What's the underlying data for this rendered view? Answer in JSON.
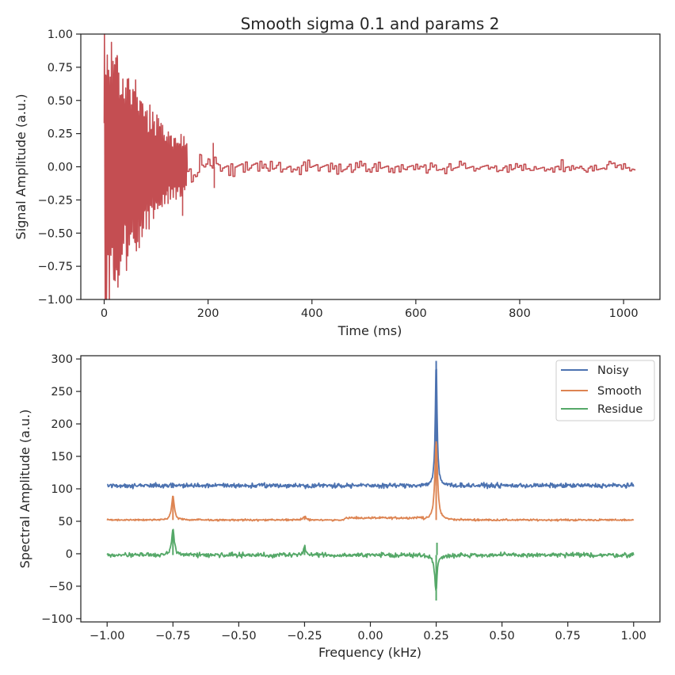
{
  "figure": {
    "title": "Smooth sigma 0.1 and params 2"
  },
  "chart_data": [
    {
      "type": "line",
      "id": "time",
      "title": "Smooth sigma 0.1 and params 2",
      "xlabel": "Time (ms)",
      "ylabel": "Signal Amplitude (a.u.)",
      "xlim": [
        -45,
        1070
      ],
      "ylim": [
        -1.0,
        1.0
      ],
      "xticks": [
        0,
        200,
        400,
        600,
        800,
        1000
      ],
      "xtick_labels": [
        "0",
        "200",
        "400",
        "600",
        "800",
        "1000"
      ],
      "yticks": [
        -1.0,
        -0.75,
        -0.5,
        -0.25,
        0.0,
        0.25,
        0.5,
        0.75,
        1.0
      ],
      "ytick_labels": [
        "−1.00",
        "−0.75",
        "−0.50",
        "−0.25",
        "0.00",
        "0.25",
        "0.50",
        "0.75",
        "1.00"
      ],
      "grid": false,
      "series": [
        {
          "color": "#c44e52",
          "description": "decaying oscillation, envelope ~1.0 at 0 ms, ~0.1 after 200 ms, ends near 1023 ms",
          "envelope_points": [
            [
              0,
              1.0
            ],
            [
              20,
              0.85
            ],
            [
              50,
              0.6
            ],
            [
              80,
              0.45
            ],
            [
              100,
              0.35
            ],
            [
              130,
              0.2
            ],
            [
              150,
              0.2
            ],
            [
              210,
              0.08
            ],
            [
              600,
              0.05
            ],
            [
              1023,
              0.04
            ]
          ],
          "x_end": 1023
        }
      ]
    },
    {
      "type": "line",
      "id": "freq",
      "xlabel": "Frequency (kHz)",
      "ylabel": "Spectral Amplitude (a.u.)",
      "xlim": [
        -1.1,
        1.1
      ],
      "ylim": [
        -105,
        305
      ],
      "xticks": [
        -1.0,
        -0.75,
        -0.5,
        -0.25,
        0.0,
        0.25,
        0.5,
        0.75,
        1.0
      ],
      "xtick_labels": [
        "−1.00",
        "−0.75",
        "−0.50",
        "−0.25",
        "0.00",
        "0.25",
        "0.50",
        "0.75",
        "1.00"
      ],
      "yticks": [
        -100,
        -50,
        0,
        50,
        100,
        150,
        200,
        250,
        300
      ],
      "ytick_labels": [
        "−100",
        "−50",
        "0",
        "50",
        "100",
        "150",
        "200",
        "250",
        "300"
      ],
      "grid": false,
      "legend": "top-right",
      "series": [
        {
          "name": "Noisy",
          "color": "#4c72b0",
          "baseline": 105,
          "noise": 3,
          "peaks": [
            {
              "x": 0.25,
              "y": 297
            }
          ]
        },
        {
          "name": "Smooth",
          "color": "#dd8452",
          "baseline": 52,
          "noise": 1.2,
          "peaks": [
            {
              "x": -0.75,
              "y": 89
            },
            {
              "x": 0.25,
              "y": 173
            },
            {
              "x": -0.25,
              "y": 58
            }
          ]
        },
        {
          "name": "Residue",
          "color": "#55a868",
          "baseline": -2,
          "noise": 3,
          "peaks": [
            {
              "x": -0.75,
              "y": 37
            },
            {
              "x": 0.25,
              "y": -72
            },
            {
              "x": 0.253,
              "y": 17
            },
            {
              "x": -0.25,
              "y": 10
            }
          ]
        }
      ]
    }
  ]
}
